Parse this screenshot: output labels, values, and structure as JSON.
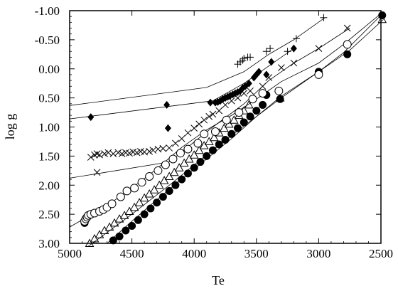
{
  "chart_data": {
    "type": "scatter",
    "title": "",
    "xlabel": "Te",
    "ylabel": "log g",
    "x_reversed": true,
    "y_reversed": true,
    "xlim": [
      5000,
      2500
    ],
    "ylim": [
      3.0,
      -1.0
    ],
    "x_ticks": [
      5000,
      4500,
      4000,
      3500,
      3000,
      2500
    ],
    "x_tick_labels": [
      "5000",
      "4500",
      "4000",
      "3500",
      "3000",
      "2500"
    ],
    "y_ticks": [
      -1.0,
      -0.5,
      0.0,
      0.5,
      1.0,
      1.5,
      2.0,
      2.5,
      3.0
    ],
    "y_tick_labels": [
      "-1.00",
      "-0.50",
      "0.00",
      "0.50",
      "1.00",
      "1.50",
      "2.00",
      "2.50",
      "3.00"
    ],
    "grid": false,
    "legend": "none",
    "series": [
      {
        "marker": "plus",
        "line": [
          [
            5000,
            0.63
          ],
          [
            3900,
            0.32
          ],
          [
            3600,
            0.05
          ],
          [
            3400,
            -0.25
          ],
          [
            3200,
            -0.5
          ],
          [
            2950,
            -0.88
          ]
        ],
        "points": [
          [
            3650,
            -0.08
          ],
          [
            3630,
            -0.12
          ],
          [
            3610,
            -0.15
          ],
          [
            3600,
            -0.18
          ],
          [
            3570,
            -0.2
          ],
          [
            3550,
            -0.2
          ],
          [
            3420,
            -0.3
          ],
          [
            3390,
            -0.35
          ],
          [
            3250,
            -0.3
          ],
          [
            3180,
            -0.52
          ],
          [
            2960,
            -0.88
          ]
        ]
      },
      {
        "marker": "diamond",
        "line": [
          [
            5000,
            0.86
          ],
          [
            3850,
            0.55
          ],
          [
            3600,
            0.25
          ],
          [
            3400,
            -0.05
          ],
          [
            3200,
            -0.35
          ]
        ],
        "points": [
          [
            4830,
            0.83
          ],
          [
            4220,
            0.62
          ],
          [
            4210,
            1.02
          ],
          [
            3870,
            0.58
          ],
          [
            3830,
            0.58
          ],
          [
            3810,
            0.57
          ],
          [
            3790,
            0.55
          ],
          [
            3770,
            0.52
          ],
          [
            3750,
            0.5
          ],
          [
            3730,
            0.48
          ],
          [
            3710,
            0.46
          ],
          [
            3690,
            0.44
          ],
          [
            3670,
            0.42
          ],
          [
            3650,
            0.4
          ],
          [
            3630,
            0.38
          ],
          [
            3610,
            0.33
          ],
          [
            3590,
            0.3
          ],
          [
            3560,
            0.25
          ],
          [
            3520,
            0.15
          ],
          [
            3500,
            0.1
          ],
          [
            3480,
            0.05
          ],
          [
            3420,
            0.1
          ],
          [
            3380,
            -0.12
          ],
          [
            3200,
            -0.35
          ]
        ]
      },
      {
        "marker": "x",
        "line": [
          [
            5000,
            1.88
          ],
          [
            4200,
            1.6
          ],
          [
            3850,
            1.0
          ],
          [
            3600,
            0.6
          ],
          [
            3400,
            0.2
          ],
          [
            3200,
            -0.1
          ],
          [
            3000,
            -0.35
          ],
          [
            2750,
            -0.7
          ]
        ],
        "points": [
          [
            4830,
            1.52
          ],
          [
            4800,
            1.48
          ],
          [
            4780,
            1.46
          ],
          [
            4760,
            1.48
          ],
          [
            4720,
            1.46
          ],
          [
            4690,
            1.44
          ],
          [
            4650,
            1.46
          ],
          [
            4610,
            1.44
          ],
          [
            4580,
            1.46
          ],
          [
            4550,
            1.44
          ],
          [
            4520,
            1.45
          ],
          [
            4490,
            1.43
          ],
          [
            4460,
            1.44
          ],
          [
            4430,
            1.42
          ],
          [
            4400,
            1.43
          ],
          [
            4360,
            1.42
          ],
          [
            4330,
            1.4
          ],
          [
            4290,
            1.38
          ],
          [
            4250,
            1.37
          ],
          [
            4200,
            1.36
          ],
          [
            4150,
            1.28
          ],
          [
            4100,
            1.2
          ],
          [
            4050,
            1.1
          ],
          [
            4000,
            1.02
          ],
          [
            3960,
            0.95
          ],
          [
            3920,
            0.88
          ],
          [
            3880,
            0.82
          ],
          [
            3850,
            0.78
          ],
          [
            3800,
            0.72
          ],
          [
            3750,
            0.62
          ],
          [
            3700,
            0.55
          ],
          [
            3650,
            0.5
          ],
          [
            3600,
            0.42
          ],
          [
            3550,
            0.38
          ],
          [
            3450,
            0.3
          ],
          [
            3400,
            0.15
          ],
          [
            3300,
            -0.02
          ],
          [
            3200,
            -0.1
          ],
          [
            3000,
            -0.35
          ],
          [
            2770,
            -0.7
          ],
          [
            4780,
            1.78
          ]
        ]
      },
      {
        "marker": "circle-open",
        "line": [
          [
            5000,
            2.72
          ],
          [
            4700,
            2.35
          ],
          [
            4500,
            2.05
          ],
          [
            4300,
            1.72
          ],
          [
            4100,
            1.35
          ],
          [
            3900,
            1.05
          ],
          [
            3700,
            0.8
          ],
          [
            3500,
            0.52
          ],
          [
            3300,
            0.22
          ],
          [
            3000,
            -0.1
          ],
          [
            2800,
            -0.42
          ],
          [
            2500,
            -0.95
          ]
        ],
        "points": [
          [
            4880,
            2.62
          ],
          [
            4870,
            2.58
          ],
          [
            4860,
            2.55
          ],
          [
            4850,
            2.52
          ],
          [
            4830,
            2.5
          ],
          [
            4800,
            2.48
          ],
          [
            4760,
            2.45
          ],
          [
            4730,
            2.42
          ],
          [
            4700,
            2.38
          ],
          [
            4660,
            2.32
          ],
          [
            4590,
            2.2
          ],
          [
            4540,
            2.1
          ],
          [
            4480,
            2.05
          ],
          [
            4420,
            1.95
          ],
          [
            4360,
            1.85
          ],
          [
            4290,
            1.75
          ],
          [
            4230,
            1.65
          ],
          [
            4170,
            1.55
          ],
          [
            4110,
            1.45
          ],
          [
            4050,
            1.38
          ],
          [
            3970,
            1.28
          ],
          [
            3920,
            1.12
          ],
          [
            3830,
            1.08
          ],
          [
            3740,
            0.88
          ],
          [
            3640,
            0.75
          ],
          [
            3530,
            0.52
          ],
          [
            3450,
            0.42
          ],
          [
            3320,
            0.38
          ],
          [
            3000,
            0.1
          ],
          [
            2770,
            -0.42
          ]
        ]
      },
      {
        "marker": "circle-filled",
        "line": [
          [
            4700,
            3.0
          ],
          [
            4500,
            2.62
          ],
          [
            4300,
            2.25
          ],
          [
            4100,
            1.9
          ],
          [
            3900,
            1.55
          ],
          [
            3700,
            1.2
          ],
          [
            3500,
            0.82
          ],
          [
            3300,
            0.47
          ],
          [
            3000,
            0.05
          ],
          [
            2800,
            -0.28
          ],
          [
            2500,
            -0.92
          ]
        ],
        "points": [
          [
            4880,
            2.65
          ],
          [
            4650,
            2.95
          ],
          [
            4600,
            2.88
          ],
          [
            4550,
            2.78
          ],
          [
            4500,
            2.7
          ],
          [
            4450,
            2.6
          ],
          [
            4400,
            2.5
          ],
          [
            4350,
            2.4
          ],
          [
            4300,
            2.3
          ],
          [
            4250,
            2.2
          ],
          [
            4200,
            2.1
          ],
          [
            4150,
            2.0
          ],
          [
            4100,
            1.9
          ],
          [
            4050,
            1.8
          ],
          [
            4000,
            1.7
          ],
          [
            3950,
            1.6
          ],
          [
            3900,
            1.5
          ],
          [
            3850,
            1.4
          ],
          [
            3800,
            1.3
          ],
          [
            3750,
            1.22
          ],
          [
            3700,
            1.12
          ],
          [
            3650,
            1.02
          ],
          [
            3600,
            0.92
          ],
          [
            3550,
            0.82
          ],
          [
            3500,
            0.72
          ],
          [
            3450,
            0.62
          ],
          [
            3420,
            0.45
          ],
          [
            3310,
            0.52
          ],
          [
            3000,
            0.05
          ],
          [
            2770,
            -0.25
          ],
          [
            2490,
            -0.92
          ]
        ]
      },
      {
        "marker": "triangle",
        "line": [
          [
            4850,
            3.05
          ],
          [
            4500,
            2.5
          ],
          [
            4200,
            2.0
          ],
          [
            3900,
            1.48
          ],
          [
            3600,
            0.98
          ],
          [
            3300,
            0.5
          ],
          [
            3000,
            0.05
          ],
          [
            2750,
            -0.32
          ],
          [
            2480,
            -0.85
          ]
        ],
        "points": [
          [
            4840,
            3.0
          ],
          [
            4800,
            2.92
          ],
          [
            4760,
            2.85
          ],
          [
            4720,
            2.78
          ],
          [
            4680,
            2.72
          ],
          [
            4640,
            2.65
          ],
          [
            4600,
            2.58
          ],
          [
            4560,
            2.52
          ],
          [
            4520,
            2.45
          ],
          [
            4480,
            2.38
          ],
          [
            4440,
            2.3
          ],
          [
            4400,
            2.22
          ],
          [
            4360,
            2.15
          ],
          [
            4320,
            2.08
          ],
          [
            4280,
            2.0
          ],
          [
            4240,
            1.92
          ],
          [
            4200,
            1.85
          ],
          [
            4160,
            1.78
          ],
          [
            4120,
            1.7
          ],
          [
            4080,
            1.62
          ],
          [
            4040,
            1.55
          ],
          [
            4000,
            1.48
          ],
          [
            3960,
            1.4
          ],
          [
            3920,
            1.32
          ],
          [
            3880,
            1.25
          ],
          [
            3840,
            1.18
          ],
          [
            3800,
            1.1
          ],
          [
            3760,
            1.02
          ],
          [
            3720,
            0.95
          ],
          [
            3680,
            0.88
          ],
          [
            3640,
            0.8
          ],
          [
            3600,
            0.72
          ],
          [
            3560,
            0.62
          ],
          [
            3310,
            0.5
          ],
          [
            2490,
            -0.85
          ]
        ]
      }
    ]
  }
}
